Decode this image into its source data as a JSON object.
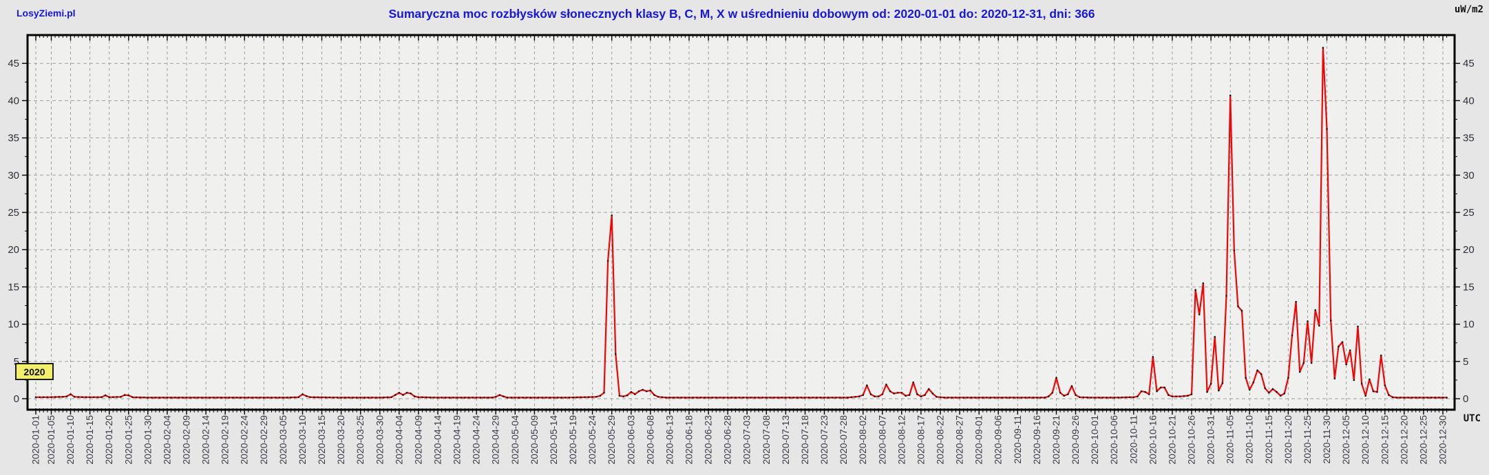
{
  "page": {
    "site_name": "LosyZiemi.pl"
  },
  "chart_data": {
    "type": "line",
    "title": "Sumaryczna moc rozbłysków słonecznych klasy B, C, M, X w uśrednieniu dobowym od: 2020-01-01 do: 2020-12-31, dni: 366",
    "unit_label": "uW/m2",
    "timezone_label": "UTC",
    "year_badge": "2020",
    "x_range": [
      "2020-01-01",
      "2020-12-31"
    ],
    "days": 366,
    "ylim": [
      0,
      49
    ],
    "y_ticks": [
      0,
      5,
      10,
      15,
      20,
      25,
      30,
      35,
      40,
      45
    ],
    "grid": "dashed",
    "legend": "none",
    "colors": {
      "title_blue": "#1717d6",
      "line_red": "#f00505",
      "marker_black": "#151515",
      "badge_yellow": "#f2ef6b",
      "grid_gray": "#9d9d9d",
      "plot_bg": "#f0f0ee",
      "page_bg": "#e6e6e6",
      "axis_black": "#000000",
      "x_label_color": "#3a3a46",
      "y_label_color": "#2e2e38"
    },
    "x_tick_labels": [
      "2020-01-01",
      "2020-01-05",
      "2020-01-10",
      "2020-01-15",
      "2020-01-20",
      "2020-01-25",
      "2020-01-30",
      "2020-02-04",
      "2020-02-09",
      "2020-02-14",
      "2020-02-19",
      "2020-02-24",
      "2020-02-29",
      "2020-03-05",
      "2020-03-10",
      "2020-03-15",
      "2020-03-20",
      "2020-03-25",
      "2020-03-30",
      "2020-04-04",
      "2020-04-09",
      "2020-04-14",
      "2020-04-19",
      "2020-04-24",
      "2020-04-29",
      "2020-05-04",
      "2020-05-09",
      "2020-05-14",
      "2020-05-19",
      "2020-05-24",
      "2020-05-29",
      "2020-06-03",
      "2020-06-08",
      "2020-06-13",
      "2020-06-18",
      "2020-06-23",
      "2020-06-28",
      "2020-07-03",
      "2020-07-08",
      "2020-07-13",
      "2020-07-18",
      "2020-07-23",
      "2020-07-28",
      "2020-08-02",
      "2020-08-07",
      "2020-08-12",
      "2020-08-17",
      "2020-08-22",
      "2020-08-27",
      "2020-09-01",
      "2020-09-06",
      "2020-09-11",
      "2020-09-16",
      "2020-09-21",
      "2020-09-26",
      "2020-10-01",
      "2020-10-06",
      "2020-10-11",
      "2020-10-16",
      "2020-10-21",
      "2020-10-26",
      "2020-10-31",
      "2020-11-05",
      "2020-11-10",
      "2020-11-15",
      "2020-11-20",
      "2020-11-25",
      "2020-11-30",
      "2020-12-05",
      "2020-12-10",
      "2020-12-15",
      "2020-12-20",
      "2020-12-25",
      "2020-12-30"
    ],
    "series": [
      {
        "name": "klasy B, C, M, X",
        "interpolation": "daily-linear",
        "points_doy_value": [
          [
            1,
            0.2
          ],
          [
            4,
            0.2
          ],
          [
            8,
            0.25
          ],
          [
            9,
            0.3
          ],
          [
            10,
            0.6
          ],
          [
            11,
            0.25
          ],
          [
            14,
            0.2
          ],
          [
            18,
            0.2
          ],
          [
            19,
            0.45
          ],
          [
            20,
            0.2
          ],
          [
            23,
            0.25
          ],
          [
            24,
            0.5
          ],
          [
            25,
            0.45
          ],
          [
            26,
            0.2
          ],
          [
            30,
            0.15
          ],
          [
            40,
            0.15
          ],
          [
            50,
            0.15
          ],
          [
            60,
            0.15
          ],
          [
            66,
            0.15
          ],
          [
            69,
            0.2
          ],
          [
            70,
            0.6
          ],
          [
            71,
            0.35
          ],
          [
            72,
            0.2
          ],
          [
            80,
            0.15
          ],
          [
            90,
            0.15
          ],
          [
            93,
            0.2
          ],
          [
            94,
            0.5
          ],
          [
            95,
            0.8
          ],
          [
            96,
            0.5
          ],
          [
            97,
            0.8
          ],
          [
            98,
            0.7
          ],
          [
            99,
            0.3
          ],
          [
            100,
            0.2
          ],
          [
            105,
            0.15
          ],
          [
            112,
            0.15
          ],
          [
            119,
            0.15
          ],
          [
            120,
            0.25
          ],
          [
            121,
            0.5
          ],
          [
            122,
            0.3
          ],
          [
            123,
            0.15
          ],
          [
            130,
            0.15
          ],
          [
            138,
            0.15
          ],
          [
            143,
            0.2
          ],
          [
            146,
            0.25
          ],
          [
            147,
            0.4
          ],
          [
            148,
            0.8
          ],
          [
            149,
            18.5
          ],
          [
            150,
            24.6
          ],
          [
            151,
            6
          ],
          [
            152,
            0.4
          ],
          [
            153,
            0.3
          ],
          [
            154,
            0.45
          ],
          [
            155,
            0.9
          ],
          [
            156,
            0.6
          ],
          [
            157,
            1
          ],
          [
            158,
            1.2
          ],
          [
            159,
            1
          ],
          [
            160,
            1.1
          ],
          [
            161,
            0.5
          ],
          [
            162,
            0.25
          ],
          [
            164,
            0.15
          ],
          [
            175,
            0.15
          ],
          [
            185,
            0.15
          ],
          [
            200,
            0.15
          ],
          [
            211,
            0.15
          ],
          [
            214,
            0.3
          ],
          [
            215,
            0.5
          ],
          [
            216,
            1.8
          ],
          [
            217,
            0.6
          ],
          [
            218,
            0.3
          ],
          [
            219,
            0.3
          ],
          [
            220,
            0.6
          ],
          [
            221,
            1.9
          ],
          [
            222,
            1
          ],
          [
            223,
            0.7
          ],
          [
            224,
            0.8
          ],
          [
            225,
            0.8
          ],
          [
            226,
            0.4
          ],
          [
            227,
            0.5
          ],
          [
            228,
            2.2
          ],
          [
            229,
            0.6
          ],
          [
            230,
            0.3
          ],
          [
            231,
            0.5
          ],
          [
            232,
            1.3
          ],
          [
            233,
            0.7
          ],
          [
            234,
            0.25
          ],
          [
            236,
            0.15
          ],
          [
            245,
            0.15
          ],
          [
            255,
            0.15
          ],
          [
            262,
            0.15
          ],
          [
            263,
            0.3
          ],
          [
            264,
            0.8
          ],
          [
            265,
            2.8
          ],
          [
            266,
            0.8
          ],
          [
            267,
            0.4
          ],
          [
            268,
            0.6
          ],
          [
            269,
            1.7
          ],
          [
            270,
            0.5
          ],
          [
            271,
            0.2
          ],
          [
            274,
            0.15
          ],
          [
            280,
            0.15
          ],
          [
            285,
            0.2
          ],
          [
            286,
            0.3
          ],
          [
            287,
            1
          ],
          [
            288,
            0.9
          ],
          [
            289,
            0.6
          ],
          [
            290,
            5.6
          ],
          [
            291,
            1
          ],
          [
            292,
            1.5
          ],
          [
            293,
            1.5
          ],
          [
            294,
            0.5
          ],
          [
            295,
            0.3
          ],
          [
            297,
            0.3
          ],
          [
            299,
            0.4
          ],
          [
            300,
            0.6
          ],
          [
            301,
            14.6
          ],
          [
            302,
            11.3
          ],
          [
            303,
            15.5
          ],
          [
            304,
            0.9
          ],
          [
            305,
            2
          ],
          [
            306,
            8.3
          ],
          [
            307,
            1.1
          ],
          [
            308,
            2.1
          ],
          [
            309,
            13.8
          ],
          [
            310,
            40.7
          ],
          [
            311,
            19.9
          ],
          [
            312,
            12.4
          ],
          [
            313,
            11.8
          ],
          [
            314,
            2.8
          ],
          [
            315,
            1.2
          ],
          [
            316,
            2.2
          ],
          [
            317,
            3.8
          ],
          [
            318,
            3.3
          ],
          [
            319,
            1.4
          ],
          [
            320,
            0.8
          ],
          [
            321,
            1.3
          ],
          [
            322,
            0.9
          ],
          [
            323,
            0.4
          ],
          [
            324,
            0.7
          ],
          [
            325,
            2.8
          ],
          [
            326,
            8.5
          ],
          [
            327,
            13
          ],
          [
            328,
            3.6
          ],
          [
            329,
            4.8
          ],
          [
            330,
            10.4
          ],
          [
            331,
            4.8
          ],
          [
            332,
            11.9
          ],
          [
            333,
            9.8
          ],
          [
            334,
            47.1
          ],
          [
            335,
            36.2
          ],
          [
            336,
            10.5
          ],
          [
            337,
            2.7
          ],
          [
            338,
            7
          ],
          [
            339,
            7.6
          ],
          [
            340,
            4.6
          ],
          [
            341,
            6.5
          ],
          [
            342,
            2.5
          ],
          [
            343,
            9.7
          ],
          [
            344,
            2
          ],
          [
            345,
            0.4
          ],
          [
            346,
            2.6
          ],
          [
            347,
            1
          ],
          [
            348,
            0.9
          ],
          [
            349,
            5.8
          ],
          [
            350,
            1.8
          ],
          [
            351,
            0.5
          ],
          [
            352,
            0.2
          ],
          [
            353,
            0.15
          ],
          [
            358,
            0.15
          ],
          [
            362,
            0.15
          ],
          [
            366,
            0.15
          ]
        ]
      }
    ]
  }
}
